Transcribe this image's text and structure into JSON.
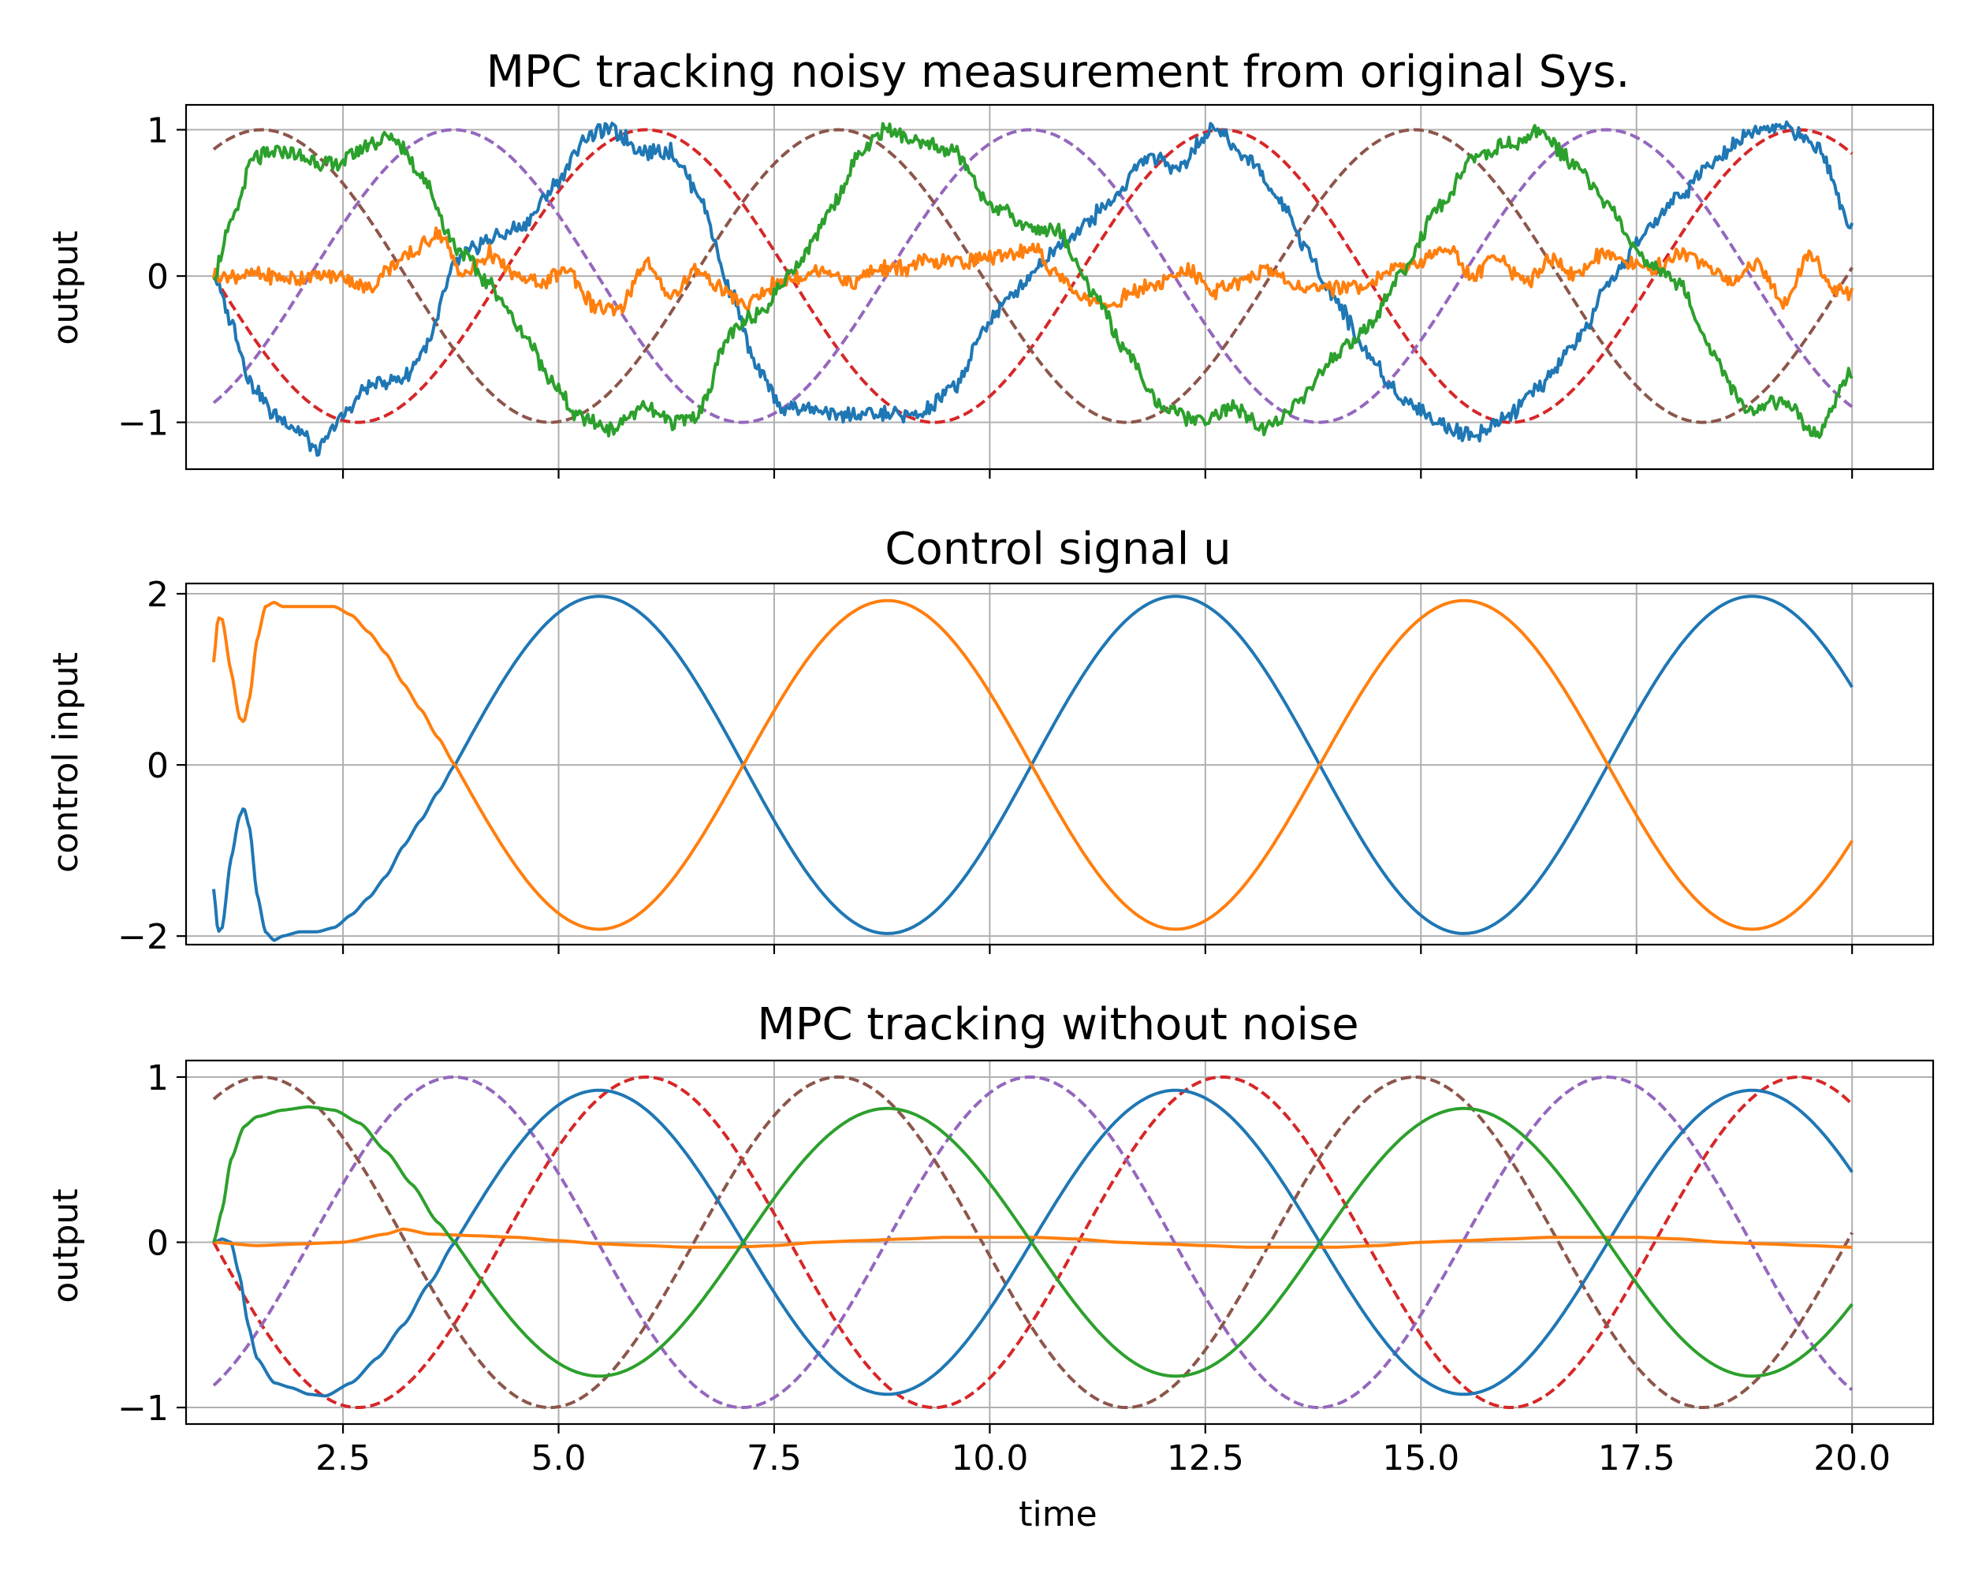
{
  "chart_data": [
    {
      "type": "line",
      "title": "MPC tracking noisy measurement from original Sys.",
      "ylabel": "output",
      "xlabel": "",
      "xlim": [
        0.68,
        20.94
      ],
      "ylim": [
        -1.32,
        1.17
      ],
      "xticks": [
        2.5,
        5.0,
        7.5,
        10.0,
        12.5,
        15.0,
        17.5,
        20.0
      ],
      "yticks": [
        -1,
        0,
        1
      ],
      "ytick_labels": [
        "−1",
        "0",
        "1"
      ],
      "show_xtick_labels": false,
      "grid": true,
      "series": [
        {
          "color": "#1f77b4",
          "style": "solid",
          "noisy": true,
          "x": [
            1.0,
            1.2,
            1.45,
            1.7,
            2.0,
            2.2,
            2.5,
            2.8,
            3.2,
            3.5,
            3.8,
            4.2,
            4.6,
            5.0,
            5.3,
            5.6,
            6.0,
            6.3,
            6.6,
            7.0,
            7.3,
            7.6,
            8.0,
            8.4,
            8.8,
            9.2,
            9.6,
            10.0,
            10.3,
            10.6,
            11.0,
            11.4,
            11.8,
            12.2,
            12.6,
            13.0,
            13.4,
            13.7,
            14.0,
            14.4,
            14.8,
            15.2,
            15.6,
            16.0,
            16.4,
            16.8,
            17.2,
            17.6,
            18.0,
            18.4,
            18.8,
            19.2,
            19.6,
            20.0
          ],
          "y": [
            0.0,
            -0.3,
            -0.75,
            -0.95,
            -1.05,
            -1.2,
            -0.95,
            -0.75,
            -0.7,
            -0.45,
            0.1,
            0.25,
            0.35,
            0.65,
            0.95,
            1.0,
            0.85,
            0.85,
            0.6,
            -0.1,
            -0.65,
            -0.9,
            -0.92,
            -0.95,
            -0.95,
            -0.95,
            -0.75,
            -0.3,
            -0.1,
            0.1,
            0.3,
            0.5,
            0.8,
            0.75,
            1.02,
            0.8,
            0.5,
            0.15,
            -0.15,
            -0.55,
            -0.85,
            -1.0,
            -1.1,
            -0.95,
            -0.75,
            -0.45,
            -0.05,
            0.3,
            0.55,
            0.8,
            0.98,
            1.02,
            0.9,
            0.33
          ]
        },
        {
          "color": "#ff7f0e",
          "style": "solid",
          "noisy": true,
          "x": [
            1.0,
            1.3,
            1.6,
            1.9,
            2.2,
            2.5,
            2.8,
            3.0,
            3.3,
            3.6,
            3.9,
            4.2,
            4.5,
            4.8,
            5.1,
            5.4,
            5.7,
            6.0,
            6.3,
            6.6,
            6.9,
            7.2,
            7.5,
            7.8,
            8.1,
            8.4,
            8.7,
            9.0,
            9.3,
            9.6,
            9.9,
            10.2,
            10.5,
            10.8,
            11.1,
            11.4,
            11.7,
            12.0,
            12.3,
            12.6,
            12.9,
            13.2,
            13.5,
            13.8,
            14.1,
            14.4,
            14.7,
            15.0,
            15.3,
            15.6,
            15.9,
            16.2,
            16.5,
            16.8,
            17.1,
            17.4,
            17.7,
            18.0,
            18.3,
            18.6,
            18.9,
            19.2,
            19.5,
            19.8,
            20.0
          ],
          "y": [
            0.0,
            0.0,
            0.0,
            -0.02,
            0.0,
            0.0,
            -0.1,
            0.05,
            0.15,
            0.3,
            0.0,
            0.15,
            0.0,
            -0.05,
            0.05,
            -0.2,
            -0.25,
            0.1,
            -0.15,
            0.05,
            -0.1,
            -0.2,
            -0.05,
            0.0,
            0.05,
            -0.05,
            0.05,
            0.05,
            0.1,
            0.1,
            0.12,
            0.15,
            0.2,
            0.0,
            -0.15,
            -0.2,
            -0.1,
            -0.05,
            0.05,
            -0.1,
            -0.05,
            0.05,
            -0.05,
            -0.1,
            -0.08,
            -0.05,
            0.05,
            0.1,
            0.2,
            0.0,
            0.15,
            -0.05,
            0.12,
            0.0,
            0.15,
            0.1,
            0.05,
            0.15,
            0.1,
            -0.05,
            0.1,
            -0.2,
            0.15,
            -0.1,
            -0.12
          ]
        },
        {
          "color": "#2ca02c",
          "style": "solid",
          "noisy": true,
          "x": [
            1.0,
            1.2,
            1.45,
            1.8,
            2.1,
            2.4,
            2.8,
            3.1,
            3.4,
            3.8,
            4.2,
            4.6,
            4.9,
            5.2,
            5.6,
            6.0,
            6.3,
            6.6,
            7.0,
            7.4,
            7.8,
            8.2,
            8.5,
            8.8,
            9.2,
            9.6,
            10.0,
            10.4,
            10.8,
            11.2,
            11.6,
            12.0,
            12.4,
            12.8,
            13.2,
            13.6,
            14.0,
            14.4,
            14.8,
            15.2,
            15.6,
            16.0,
            16.4,
            16.8,
            17.2,
            17.6,
            18.0,
            18.4,
            18.8,
            19.2,
            19.6,
            20.0
          ],
          "y": [
            0.0,
            0.35,
            0.8,
            0.85,
            0.8,
            0.75,
            0.9,
            0.95,
            0.7,
            0.2,
            -0.05,
            -0.4,
            -0.7,
            -0.95,
            -1.05,
            -0.9,
            -1.0,
            -0.95,
            -0.4,
            -0.2,
            0.1,
            0.5,
            0.85,
            1.0,
            0.9,
            0.85,
            0.5,
            0.35,
            0.3,
            -0.1,
            -0.55,
            -0.9,
            -1.0,
            -0.9,
            -1.05,
            -0.85,
            -0.55,
            -0.35,
            0.05,
            0.45,
            0.8,
            0.9,
            0.98,
            0.75,
            0.45,
            0.1,
            -0.05,
            -0.55,
            -0.95,
            -0.85,
            -1.1,
            -0.65
          ]
        },
        {
          "color": "#d62728",
          "style": "dashed",
          "func": "sin",
          "amp": 1.0,
          "x0": 1.0,
          "phase": 3.1416
        },
        {
          "color": "#9467bd",
          "style": "dashed",
          "func": "sin",
          "amp": 1.0,
          "x0": 1.0,
          "phase": -1.0472
        },
        {
          "color": "#8c564b",
          "style": "dashed",
          "func": "sin",
          "amp": 1.0,
          "x0": 1.0,
          "phase": 1.0472
        }
      ]
    },
    {
      "type": "line",
      "title": "Control signal u",
      "ylabel": "control input",
      "xlabel": "",
      "xlim": [
        0.68,
        20.94
      ],
      "ylim": [
        -2.1,
        2.12
      ],
      "xticks": [
        2.5,
        5.0,
        7.5,
        10.0,
        12.5,
        15.0,
        17.5,
        20.0
      ],
      "yticks": [
        -2,
        0,
        2
      ],
      "ytick_labels": [
        "−2",
        "0",
        "2"
      ],
      "show_xtick_labels": false,
      "grid": true,
      "series": [
        {
          "color": "#1f77b4",
          "style": "solid",
          "x": [
            1.0,
            1.05,
            1.1,
            1.2,
            1.3,
            1.35,
            1.42,
            1.5,
            1.6,
            1.7,
            1.8,
            2.0,
            2.2,
            2.4,
            2.6,
            2.8,
            3.0,
            3.2,
            3.4,
            3.6,
            3.8
          ],
          "y": [
            -1.45,
            -1.95,
            -1.9,
            -1.1,
            -0.6,
            -0.5,
            -0.75,
            -1.5,
            -1.95,
            -2.05,
            -2.0,
            -1.95,
            -1.95,
            -1.9,
            -1.75,
            -1.55,
            -1.3,
            -0.95,
            -0.65,
            -0.32,
            0.0
          ],
          "func_from": 3.8,
          "func": "sin",
          "amp": 1.97,
          "x0": 3.8,
          "phase": 0.0,
          "x_end": 20.0
        },
        {
          "color": "#ff7f0e",
          "style": "solid",
          "x": [
            1.0,
            1.05,
            1.1,
            1.2,
            1.3,
            1.35,
            1.42,
            1.5,
            1.6,
            1.7,
            1.8,
            2.0,
            2.2,
            2.4,
            2.6,
            2.8,
            3.0,
            3.2,
            3.4,
            3.6,
            3.8
          ],
          "y": [
            1.2,
            1.72,
            1.7,
            1.1,
            0.55,
            0.5,
            0.8,
            1.45,
            1.85,
            1.9,
            1.85,
            1.85,
            1.85,
            1.85,
            1.75,
            1.55,
            1.3,
            0.95,
            0.65,
            0.32,
            0.0
          ],
          "func_from": 3.8,
          "func": "sin",
          "amp": 1.92,
          "x0": 3.8,
          "phase": 3.1416,
          "x_end": 20.0
        }
      ]
    },
    {
      "type": "line",
      "title": "MPC tracking without noise",
      "ylabel": "output",
      "xlabel": "time",
      "xlim": [
        0.68,
        20.94
      ],
      "ylim": [
        -1.1,
        1.1
      ],
      "xticks": [
        2.5,
        5.0,
        7.5,
        10.0,
        12.5,
        15.0,
        17.5,
        20.0
      ],
      "xtick_labels": [
        "2.5",
        "5.0",
        "7.5",
        "10.0",
        "12.5",
        "15.0",
        "17.5",
        "20.0"
      ],
      "yticks": [
        -1,
        0,
        1
      ],
      "ytick_labels": [
        "−1",
        "0",
        "1"
      ],
      "show_xtick_labels": true,
      "grid": true,
      "series": [
        {
          "color": "#1f77b4",
          "style": "solid",
          "x": [
            1.0,
            1.1,
            1.2,
            1.3,
            1.4,
            1.5,
            1.7,
            1.9,
            2.1,
            2.3,
            2.6,
            2.9,
            3.2,
            3.5,
            3.8
          ],
          "y": [
            0.0,
            0.02,
            0.0,
            -0.2,
            -0.5,
            -0.7,
            -0.85,
            -0.88,
            -0.92,
            -0.93,
            -0.85,
            -0.7,
            -0.5,
            -0.25,
            0.0
          ],
          "func_from": 3.8,
          "func": "sin",
          "amp": 0.92,
          "x0": 3.8,
          "phase": 0.0,
          "x_end": 20.0
        },
        {
          "color": "#ff7f0e",
          "style": "solid",
          "x": [
            1.0,
            1.5,
            2.0,
            2.5,
            3.0,
            3.2,
            3.5,
            4.0,
            4.5,
            5.0,
            5.5,
            6.0,
            6.5,
            7.0,
            7.5,
            8.0,
            8.5,
            9.0,
            9.5,
            10.0,
            10.5,
            11.0,
            11.5,
            12.0,
            12.5,
            13.0,
            13.5,
            14.0,
            14.5,
            15.0,
            15.5,
            16.0,
            16.5,
            17.0,
            17.5,
            18.0,
            18.5,
            19.0,
            19.5,
            20.0
          ],
          "y": [
            0.0,
            -0.02,
            -0.01,
            0.0,
            0.05,
            0.08,
            0.05,
            0.04,
            0.03,
            0.01,
            -0.01,
            -0.02,
            -0.03,
            -0.03,
            -0.02,
            0.0,
            0.01,
            0.02,
            0.03,
            0.03,
            0.03,
            0.02,
            0.0,
            -0.01,
            -0.02,
            -0.03,
            -0.03,
            -0.03,
            -0.02,
            0.0,
            0.01,
            0.02,
            0.03,
            0.03,
            0.03,
            0.02,
            0.0,
            -0.01,
            -0.02,
            -0.03
          ]
        },
        {
          "color": "#2ca02c",
          "style": "solid",
          "x": [
            1.0,
            1.1,
            1.2,
            1.35,
            1.5,
            1.8,
            2.1,
            2.4,
            2.7,
            3.0,
            3.3,
            3.6,
            3.8
          ],
          "y": [
            0.0,
            0.2,
            0.5,
            0.7,
            0.76,
            0.8,
            0.82,
            0.8,
            0.72,
            0.55,
            0.35,
            0.12,
            0.0
          ],
          "func_from": 3.8,
          "func": "sin",
          "amp": 0.81,
          "x0": 3.8,
          "phase": 3.1416,
          "x_end": 20.0
        },
        {
          "color": "#d62728",
          "style": "dashed",
          "func": "sin",
          "amp": 1.0,
          "x0": 1.0,
          "phase": 3.1416
        },
        {
          "color": "#9467bd",
          "style": "dashed",
          "func": "sin",
          "amp": 1.0,
          "x0": 1.0,
          "phase": -1.0472
        },
        {
          "color": "#8c564b",
          "style": "dashed",
          "func": "sin",
          "amp": 1.0,
          "x0": 1.0,
          "phase": 1.0472
        }
      ]
    }
  ]
}
